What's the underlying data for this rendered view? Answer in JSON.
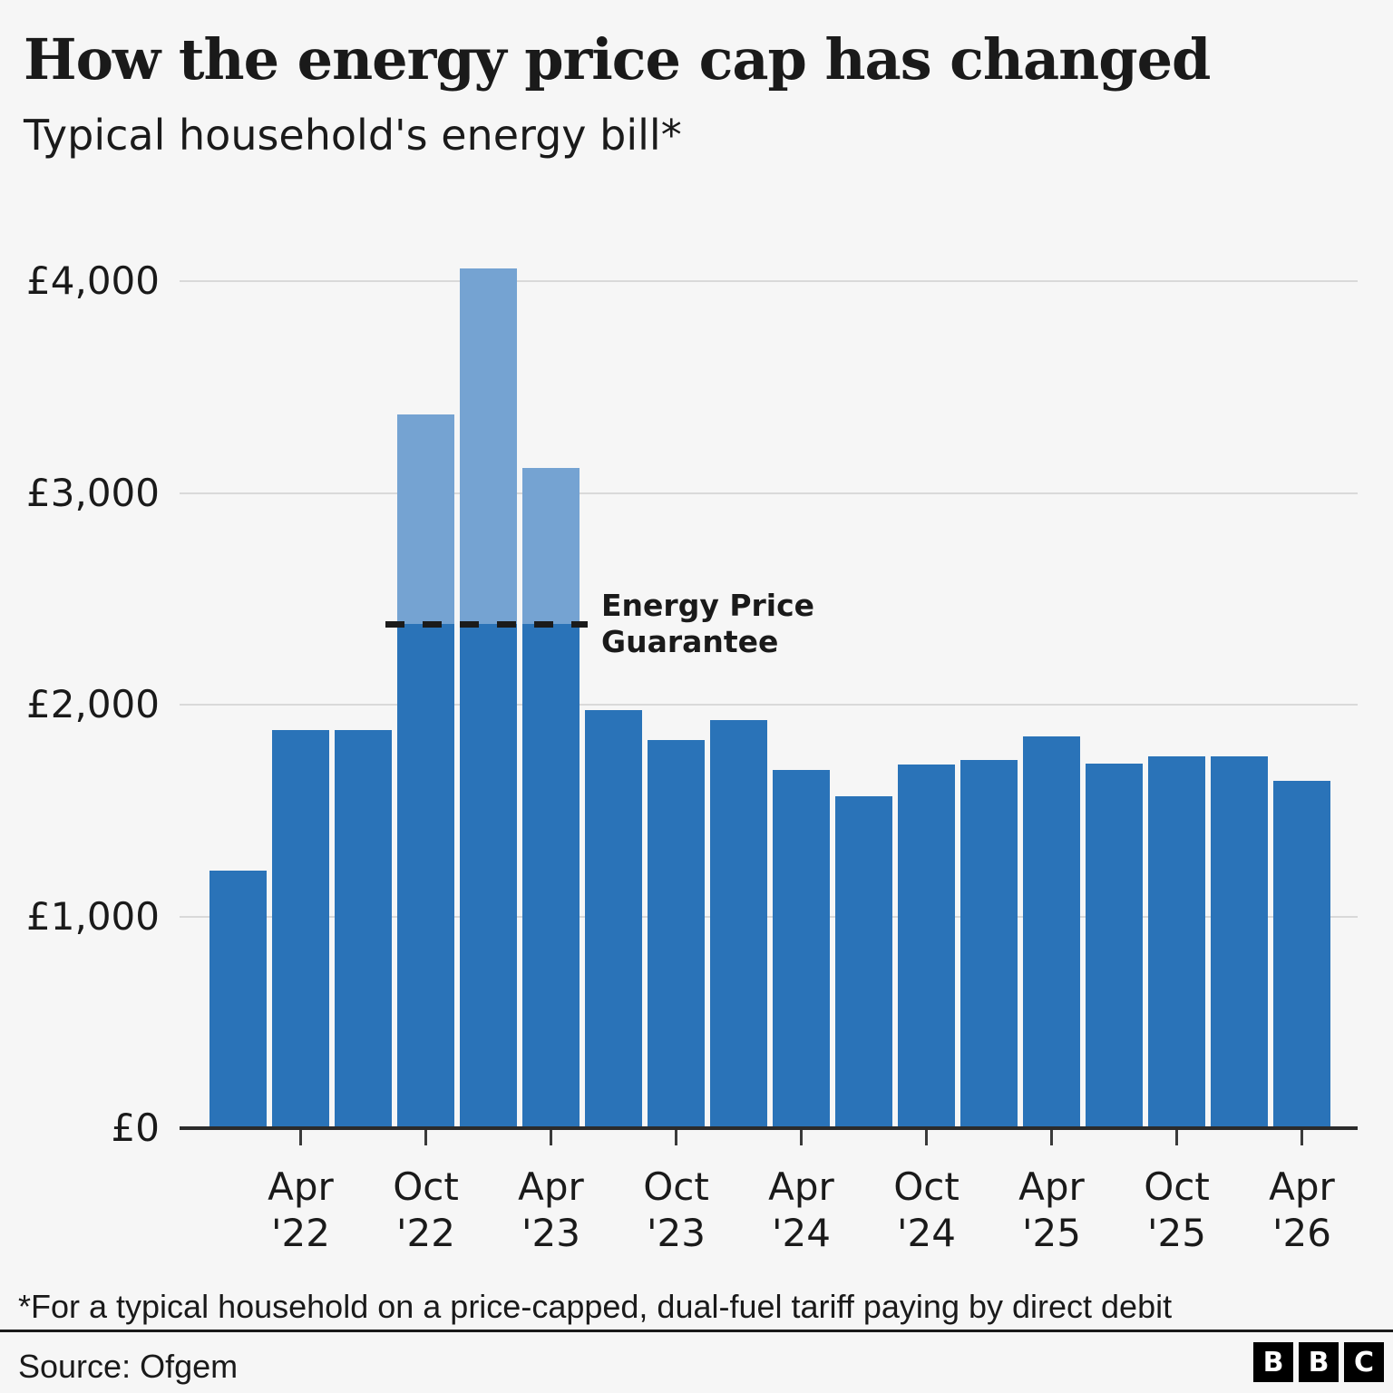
{
  "header": {
    "title": "How the energy price cap has changed",
    "subtitle": "Typical household's energy bill*"
  },
  "footnote": "*For a typical household on a price-capped, dual-fuel tariff paying by direct debit",
  "source": "Source: Ofgem",
  "logo": {
    "letters": [
      "B",
      "B",
      "C"
    ]
  },
  "chart_data": {
    "type": "bar",
    "title": "How the energy price cap has changed",
    "subtitle": "Typical household's energy bill*",
    "xlabel": "",
    "ylabel": "",
    "ylim": [
      0,
      4000
    ],
    "grid": "horizontal",
    "legend_position": "none",
    "y_ticks": [
      {
        "value": 0,
        "label": "£0"
      },
      {
        "value": 1000,
        "label": "£1,000"
      },
      {
        "value": 2000,
        "label": "£2,000"
      },
      {
        "value": 3000,
        "label": "£3,000"
      },
      {
        "value": 4000,
        "label": "£4,000"
      }
    ],
    "x_tick_bar_indices": [
      1,
      3,
      5,
      7,
      9,
      11,
      13,
      15,
      17
    ],
    "annotation": {
      "lines": [
        "Energy Price",
        "Guarantee"
      ],
      "value": 2380
    },
    "bars": [
      {
        "period": "Jan '22",
        "value": 1216
      },
      {
        "period": "Apr '22",
        "value": 1880
      },
      {
        "period": "Jul '22",
        "value": 1880
      },
      {
        "period": "Oct '22",
        "value": 2380,
        "uncapped_value": 3372
      },
      {
        "period": "Jan '23",
        "value": 2380,
        "uncapped_value": 4059
      },
      {
        "period": "Apr '23",
        "value": 2380,
        "uncapped_value": 3116
      },
      {
        "period": "Jul '23",
        "value": 1976
      },
      {
        "period": "Oct '23",
        "value": 1834
      },
      {
        "period": "Jan '24",
        "value": 1928
      },
      {
        "period": "Apr '24",
        "value": 1690
      },
      {
        "period": "Jul '24",
        "value": 1568
      },
      {
        "period": "Oct '24",
        "value": 1717
      },
      {
        "period": "Jan '25",
        "value": 1738
      },
      {
        "period": "Apr '25",
        "value": 1849
      },
      {
        "period": "Jul '25",
        "value": 1720
      },
      {
        "period": "Oct '25",
        "value": 1755
      },
      {
        "period": "Jan '26",
        "value": 1758
      },
      {
        "period": "Apr '26",
        "value": 1640
      }
    ],
    "colors": {
      "bar": "#2a73b8",
      "bar_uncapped": "#75a3d2",
      "dash_line": "#1b1b1b",
      "grid": "#d9d9d9",
      "axis": "#2b2b2b",
      "background": "#f6f6f6",
      "text": "#1a1a1a"
    }
  }
}
